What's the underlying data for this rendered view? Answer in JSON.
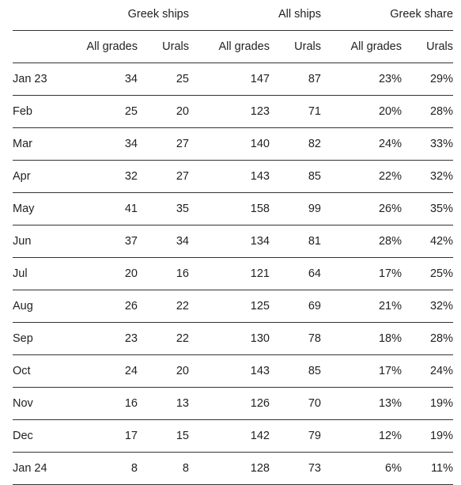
{
  "groups": {
    "greek_ships": "Greek ships",
    "all_ships": "All ships",
    "greek_share": "Greek share"
  },
  "subheaders": {
    "greek_all": "All grades",
    "greek_urals": "Urals",
    "all_all": "All grades",
    "all_urals": "Urals",
    "share_all": "All grades",
    "share_urals": "Urals"
  },
  "rows": [
    {
      "month": "Jan 23",
      "greek_all": "34",
      "greek_urals": "25",
      "all_all": "147",
      "all_urals": "87",
      "share_all": "23%",
      "share_urals": "29%"
    },
    {
      "month": "Feb",
      "greek_all": "25",
      "greek_urals": "20",
      "all_all": "123",
      "all_urals": "71",
      "share_all": "20%",
      "share_urals": "28%"
    },
    {
      "month": "Mar",
      "greek_all": "34",
      "greek_urals": "27",
      "all_all": "140",
      "all_urals": "82",
      "share_all": "24%",
      "share_urals": "33%"
    },
    {
      "month": "Apr",
      "greek_all": "32",
      "greek_urals": "27",
      "all_all": "143",
      "all_urals": "85",
      "share_all": "22%",
      "share_urals": "32%"
    },
    {
      "month": "May",
      "greek_all": "41",
      "greek_urals": "35",
      "all_all": "158",
      "all_urals": "99",
      "share_all": "26%",
      "share_urals": "35%"
    },
    {
      "month": "Jun",
      "greek_all": "37",
      "greek_urals": "34",
      "all_all": "134",
      "all_urals": "81",
      "share_all": "28%",
      "share_urals": "42%"
    },
    {
      "month": "Jul",
      "greek_all": "20",
      "greek_urals": "16",
      "all_all": "121",
      "all_urals": "64",
      "share_all": "17%",
      "share_urals": "25%"
    },
    {
      "month": "Aug",
      "greek_all": "26",
      "greek_urals": "22",
      "all_all": "125",
      "all_urals": "69",
      "share_all": "21%",
      "share_urals": "32%"
    },
    {
      "month": "Sep",
      "greek_all": "23",
      "greek_urals": "22",
      "all_all": "130",
      "all_urals": "78",
      "share_all": "18%",
      "share_urals": "28%"
    },
    {
      "month": "Oct",
      "greek_all": "24",
      "greek_urals": "20",
      "all_all": "143",
      "all_urals": "85",
      "share_all": "17%",
      "share_urals": "24%"
    },
    {
      "month": "Nov",
      "greek_all": "16",
      "greek_urals": "13",
      "all_all": "126",
      "all_urals": "70",
      "share_all": "13%",
      "share_urals": "19%"
    },
    {
      "month": "Dec",
      "greek_all": "17",
      "greek_urals": "15",
      "all_all": "142",
      "all_urals": "79",
      "share_all": "12%",
      "share_urals": "19%"
    },
    {
      "month": "Jan 24",
      "greek_all": "8",
      "greek_urals": "8",
      "all_all": "128",
      "all_urals": "73",
      "share_all": "6%",
      "share_urals": "11%"
    }
  ]
}
